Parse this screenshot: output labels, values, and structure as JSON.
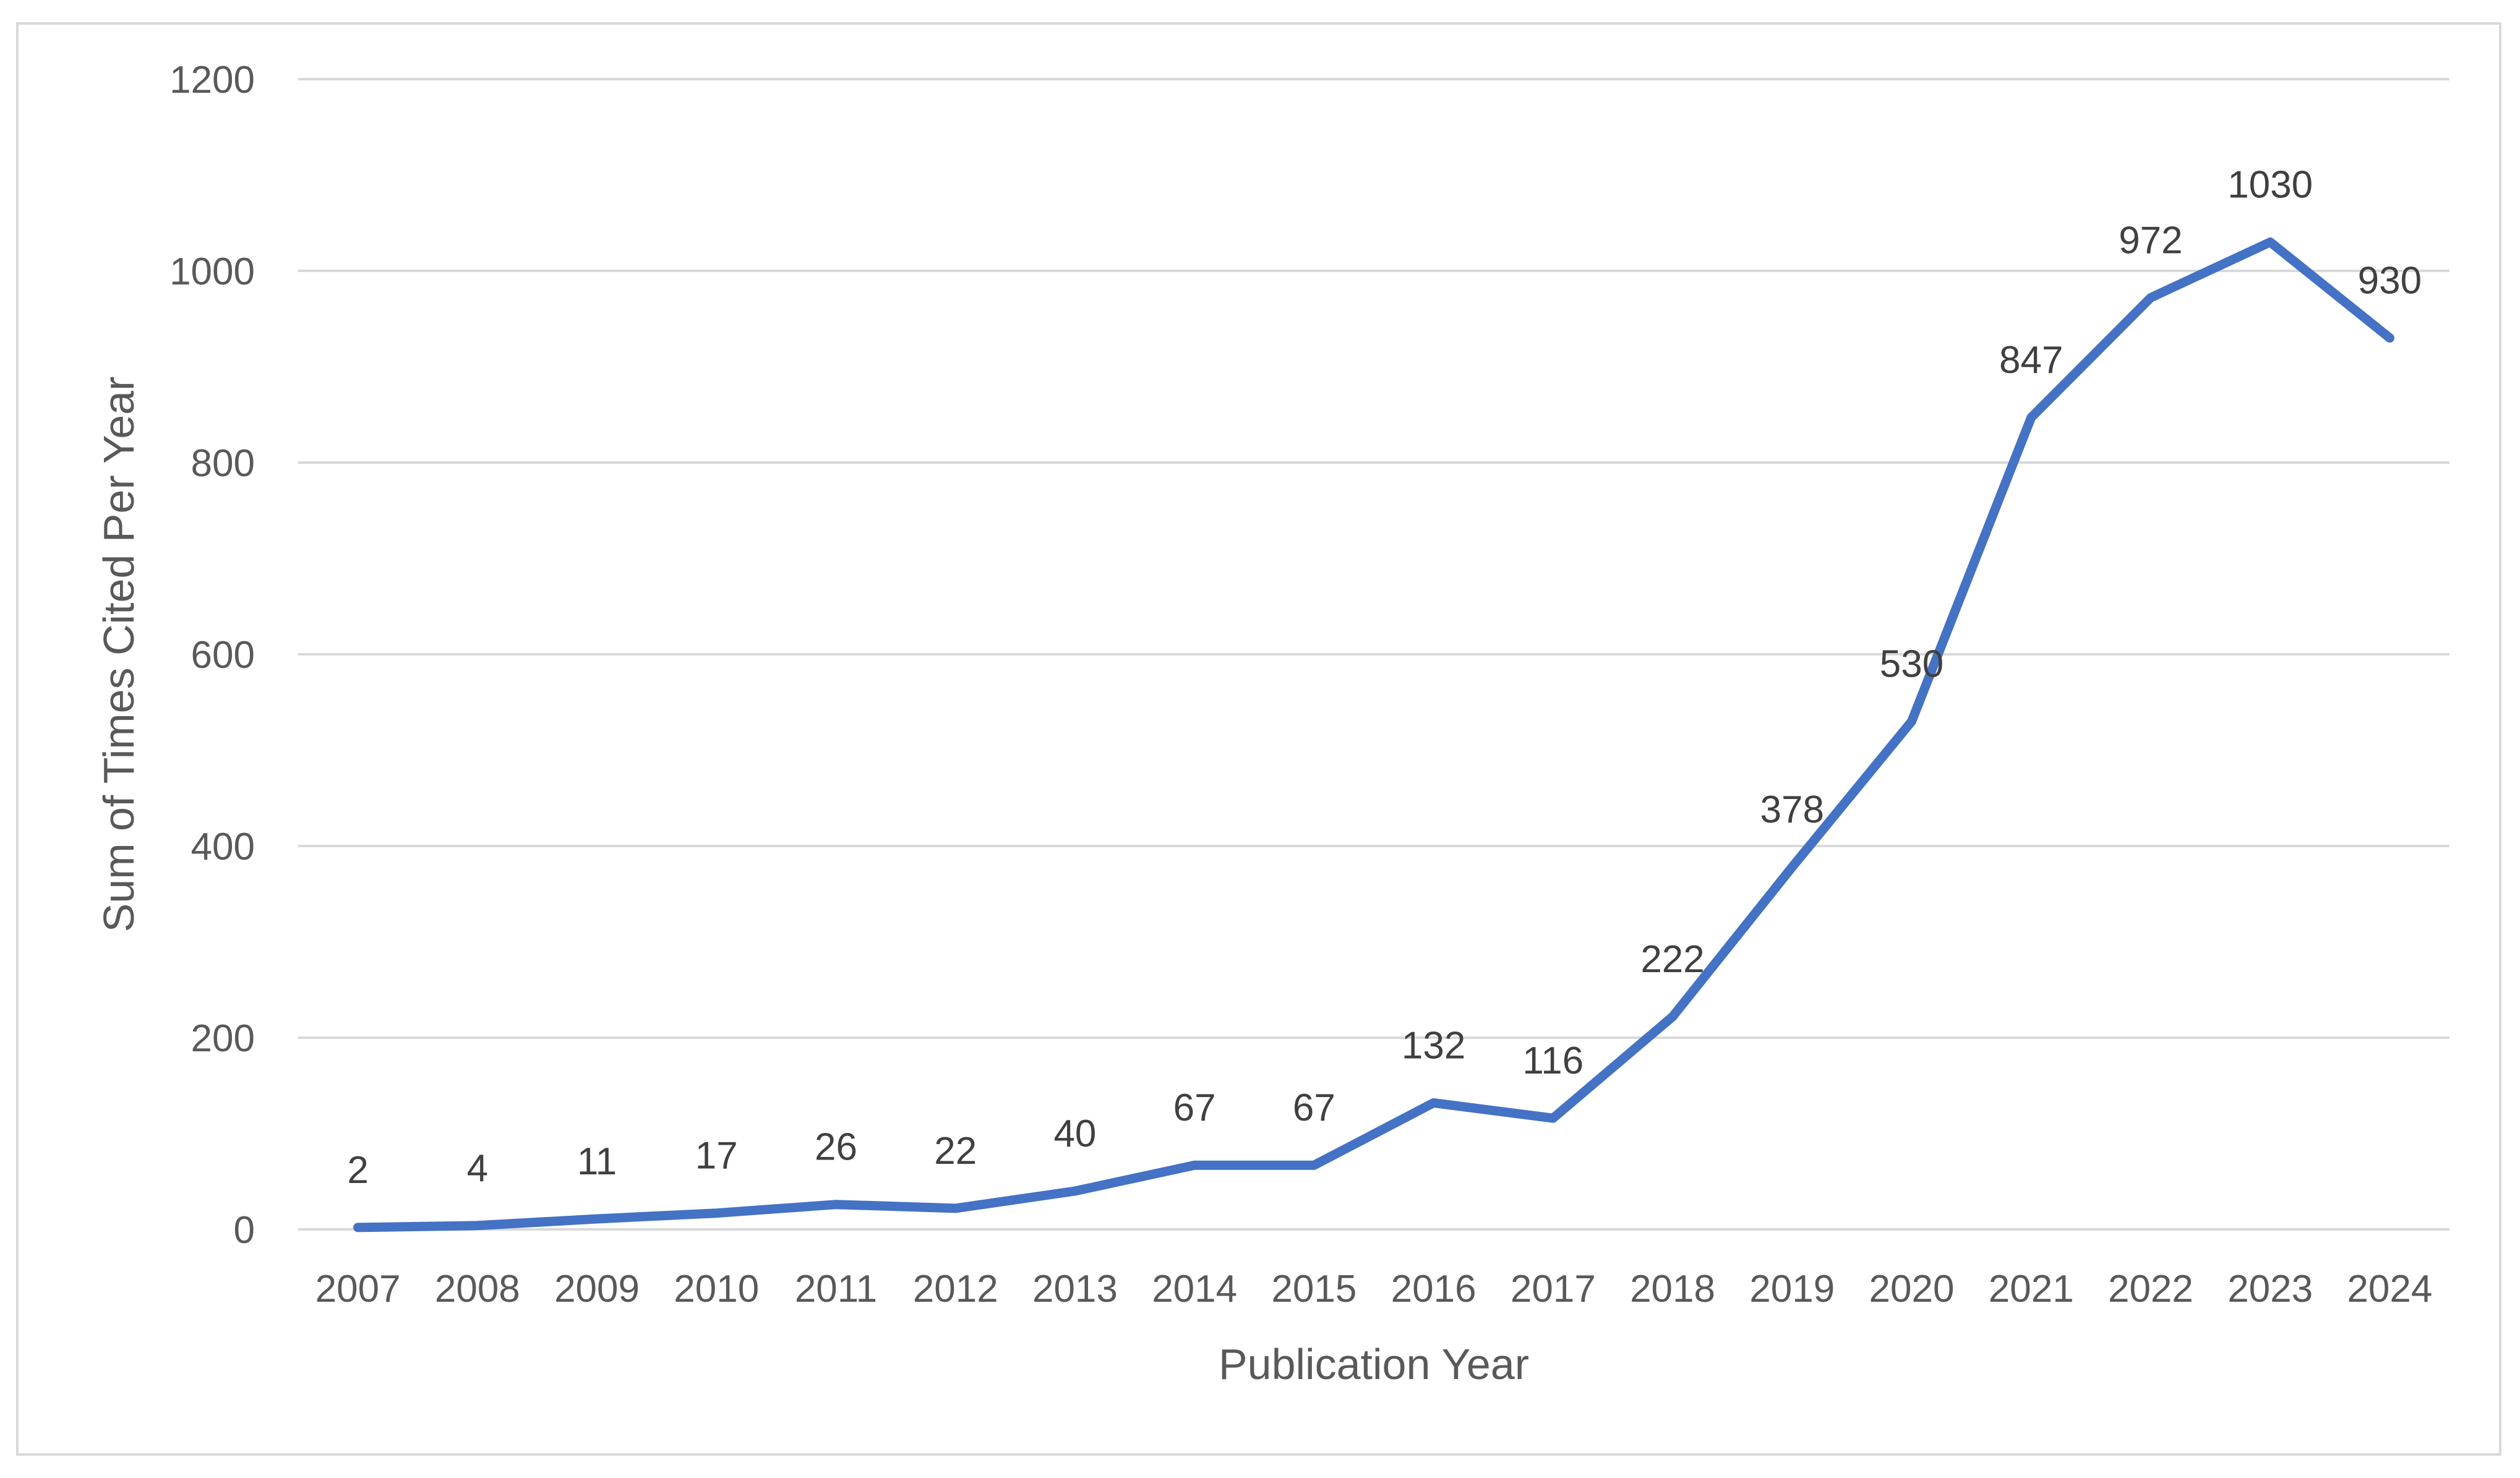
{
  "chart_data": {
    "type": "line",
    "title": "",
    "xlabel": "Publication Year",
    "ylabel": "Sum of Times Cited Per Year",
    "categories": [
      "2007",
      "2008",
      "2009",
      "2010",
      "2011",
      "2012",
      "2013",
      "2014",
      "2015",
      "2016",
      "2017",
      "2018",
      "2019",
      "2020",
      "2021",
      "2022",
      "2023",
      "2024"
    ],
    "series": [
      {
        "values": [
          2,
          4,
          11,
          17,
          26,
          22,
          40,
          67,
          67,
          132,
          116,
          222,
          378,
          530,
          847,
          972,
          1030,
          930
        ]
      }
    ],
    "ylim": [
      0,
      1200
    ],
    "yticks": [
      0,
      200,
      400,
      600,
      800,
      1000,
      1200
    ],
    "grid": true,
    "legend": "none",
    "data_labels": true,
    "colors": {
      "line": "#4472c4",
      "grid": "#d9d9d9",
      "text": "#595959",
      "label": "#404040"
    }
  }
}
